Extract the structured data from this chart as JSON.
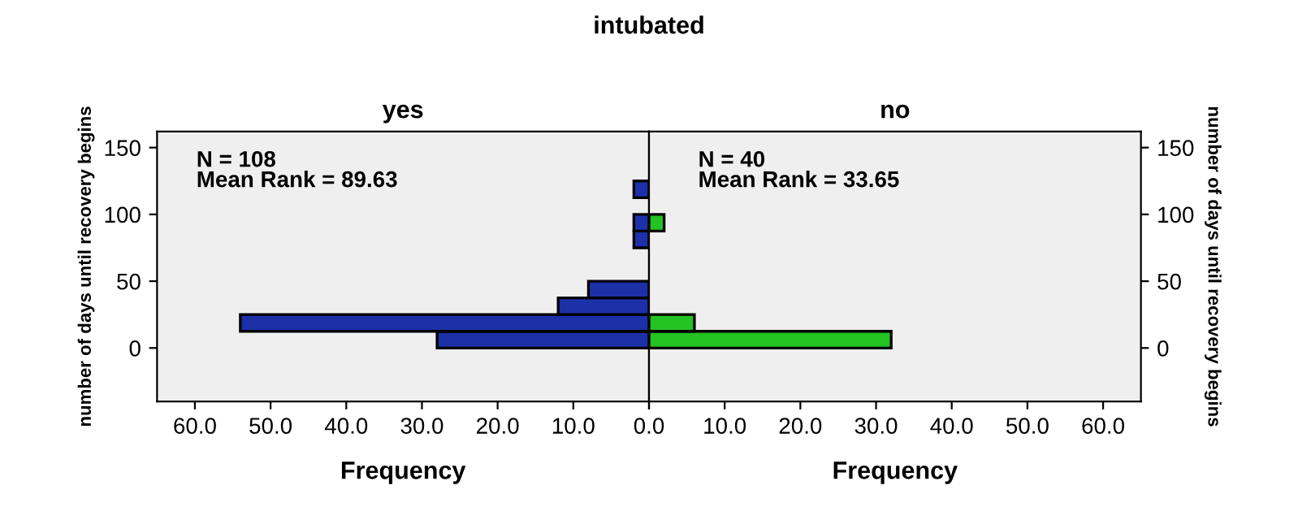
{
  "chart_data": [
    {
      "type": "histogram",
      "orientation": "horizontal",
      "title": "intubated",
      "subtitle": "yes",
      "xlabel": "Frequency",
      "ylabel": "number of days until recovery begins",
      "bins": [
        0,
        12.5,
        25,
        37.5,
        50,
        62.5,
        75,
        87.5,
        100,
        112.5,
        125
      ],
      "series": [
        {
          "color": "#1c30a8",
          "values": [
            28,
            54,
            12,
            8,
            0,
            0,
            2,
            2,
            0,
            2
          ]
        }
      ],
      "xlim": [
        65,
        0
      ],
      "xticks": [
        {
          "value": 60,
          "label": "60.0"
        },
        {
          "value": 50,
          "label": "50.0"
        },
        {
          "value": 40,
          "label": "40.0"
        },
        {
          "value": 30,
          "label": "30.0"
        },
        {
          "value": 20,
          "label": "20.0"
        },
        {
          "value": 10,
          "label": "10.0"
        },
        {
          "value": 0,
          "label": "0.0"
        }
      ],
      "ylim": [
        -40,
        162
      ],
      "yticks": [
        0,
        50,
        100,
        150
      ],
      "annotations": [
        "N = 108",
        "Mean Rank = 89.63"
      ]
    },
    {
      "type": "histogram",
      "orientation": "horizontal",
      "subtitle": "no",
      "xlabel": "Frequency",
      "ylabel": "number of days until recovery begins",
      "bins": [
        0,
        12.5,
        25,
        37.5,
        50,
        62.5,
        75,
        87.5,
        100,
        112.5,
        125
      ],
      "series": [
        {
          "color": "#22c322",
          "values": [
            32,
            6,
            0,
            0,
            0,
            0,
            0,
            2,
            0,
            0
          ]
        }
      ],
      "xlim": [
        0,
        65
      ],
      "xticks": [
        {
          "value": 0,
          "label": null
        },
        {
          "value": 10,
          "label": "10.0"
        },
        {
          "value": 20,
          "label": "20.0"
        },
        {
          "value": 30,
          "label": "30.0"
        },
        {
          "value": 40,
          "label": "40.0"
        },
        {
          "value": 50,
          "label": "50.0"
        },
        {
          "value": 60,
          "label": "60.0"
        }
      ],
      "ylim": [
        -40,
        162
      ],
      "yticks": [
        0,
        50,
        100,
        150
      ],
      "annotations": [
        "N = 40",
        "Mean Rank = 33.65"
      ]
    }
  ]
}
